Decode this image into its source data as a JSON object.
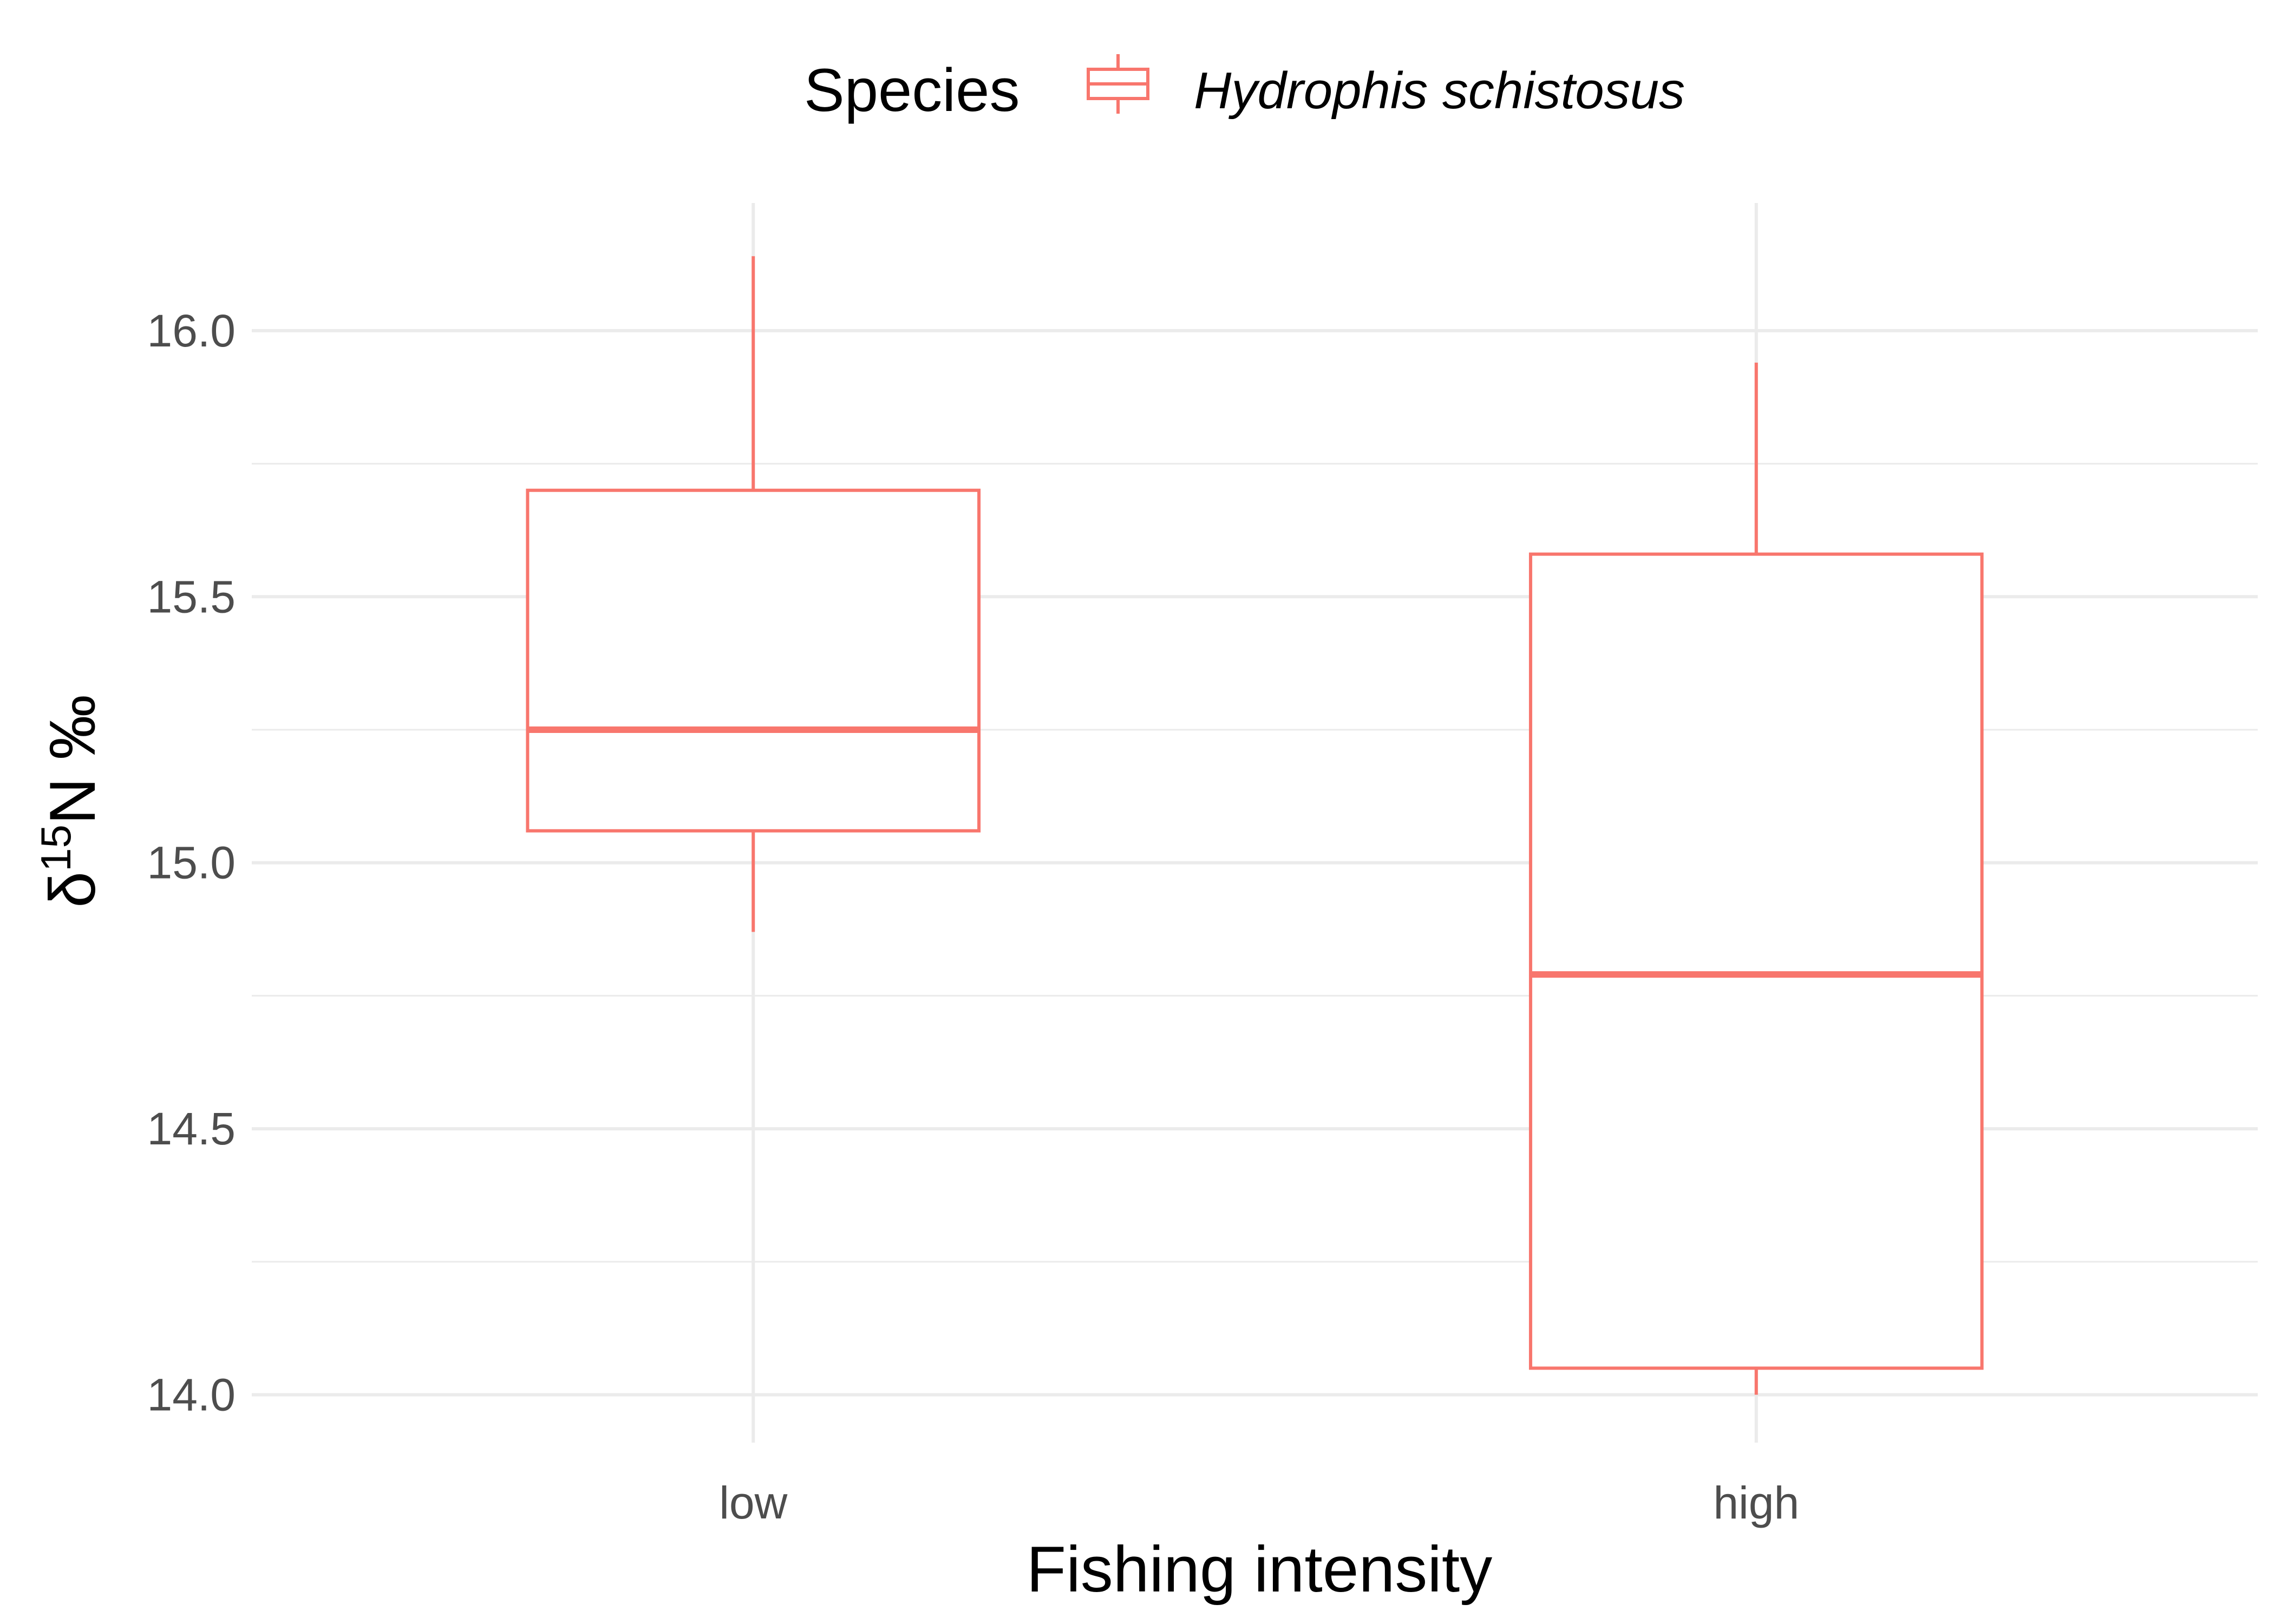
{
  "chart_data": {
    "type": "box",
    "categories": [
      "low",
      "high"
    ],
    "xlabel": "Fishing intensity",
    "ylabel": {
      "prefix": "δ",
      "superscript": "15",
      "suffix": "N ‰"
    },
    "ylim": [
      13.91,
      16.24
    ],
    "yticks": [
      14.0,
      14.5,
      15.0,
      15.5,
      16.0
    ],
    "ytick_labels": [
      "14.0",
      "14.5",
      "15.0",
      "15.5",
      "16.0"
    ],
    "grid": true,
    "legend": {
      "position": "top",
      "title": "Species"
    },
    "series": [
      {
        "name": "Hydrophis schistosus",
        "color": "#f8766d",
        "boxes": [
          {
            "category": "low",
            "whisker_low": 14.87,
            "q1": 15.06,
            "median": 15.25,
            "q3": 15.7,
            "whisker_high": 16.14
          },
          {
            "category": "high",
            "whisker_low": 14.0,
            "q1": 14.05,
            "median": 14.79,
            "q3": 15.58,
            "whisker_high": 15.94
          }
        ]
      }
    ]
  }
}
